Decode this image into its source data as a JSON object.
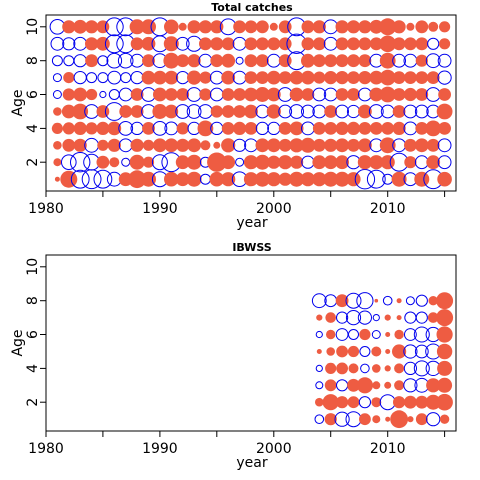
{
  "colors": {
    "positive": "#EE5C42",
    "negative": "#0000EE",
    "axis": "#000000"
  },
  "chart_data": [
    {
      "type": "scatter",
      "chart_kind": "bubble-residuals",
      "title": "Total catches",
      "xlabel": "year",
      "ylabel": "Age",
      "xlim": [
        1980,
        2016
      ],
      "ylim": [
        0.3,
        10.7
      ],
      "x_ticks": [
        1980,
        1990,
        2000,
        2010
      ],
      "x_tick_labels": [
        "1980",
        "1990",
        "2000",
        "2010"
      ],
      "x_minor_ticks": [
        1985,
        1995,
        2005,
        2015
      ],
      "y_ticks": [
        2,
        4,
        6,
        8,
        10
      ],
      "y_tick_labels": [
        "2",
        "4",
        "6",
        "8",
        "10"
      ],
      "grid": false,
      "legend": "none",
      "years": [
        1981,
        1982,
        1983,
        1984,
        1985,
        1986,
        1987,
        1988,
        1989,
        1990,
        1991,
        1992,
        1993,
        1994,
        1995,
        1996,
        1997,
        1998,
        1999,
        2000,
        2001,
        2002,
        2003,
        2004,
        2005,
        2006,
        2007,
        2008,
        2009,
        2010,
        2011,
        2012,
        2013,
        2014,
        2015
      ],
      "ages": [
        1,
        2,
        3,
        4,
        5,
        6,
        7,
        8,
        9,
        10
      ],
      "residuals": [
        [
          0.2,
          2.3,
          -2.5,
          -2.8,
          -2.5,
          -1.5,
          1.5,
          2.5,
          1.8,
          -1.8,
          1.7,
          1.5,
          1.8,
          -0.8,
          1.7,
          1.6,
          -1.7,
          1.6,
          1.8,
          1.6,
          1.4,
          1.8,
          1.6,
          1.6,
          1.8,
          1.8,
          1.6,
          -3.0,
          -2.5,
          -0.8,
          1.8,
          -1.3,
          1.8,
          -2.8,
          1.7
        ],
        [
          0.5,
          -1.7,
          -3.0,
          -2.0,
          1.3,
          0.8,
          -0.5,
          1.8,
          1.0,
          -1.8,
          -2.8,
          1.5,
          1.8,
          -0.8,
          3.0,
          1.5,
          -0.5,
          1.6,
          1.8,
          1.4,
          1.6,
          1.4,
          -1.2,
          1.5,
          1.5,
          1.5,
          -1.4,
          1.6,
          1.6,
          1.6,
          -2.5,
          1.2,
          -1.3,
          1.5,
          -1.3
        ],
        [
          0.6,
          1.3,
          1.4,
          -1.5,
          1.0,
          1.4,
          -1.3,
          1.4,
          1.0,
          1.5,
          1.5,
          1.4,
          1.5,
          0.8,
          0.4,
          1.6,
          -1.2,
          -1.3,
          1.5,
          1.5,
          1.3,
          1.6,
          1.8,
          1.3,
          1.4,
          1.5,
          1.3,
          1.5,
          -1.3,
          2.0,
          -1.3,
          1.3,
          1.5,
          1.3,
          -1.3
        ],
        [
          1.0,
          1.2,
          1.4,
          1.2,
          1.4,
          1.5,
          -1.5,
          -1.2,
          1.3,
          -1.5,
          -1.3,
          1.2,
          -1.2,
          2.0,
          -1.2,
          1.3,
          1.4,
          1.3,
          -1.2,
          -1.2,
          1.3,
          1.5,
          -1.3,
          1.3,
          1.3,
          1.4,
          1.4,
          1.3,
          1.3,
          1.3,
          1.4,
          -1.3,
          1.3,
          2.0,
          1.3
        ],
        [
          0.6,
          1.5,
          2.0,
          -1.5,
          1.3,
          -2.5,
          1.3,
          1.3,
          -1.5,
          1.8,
          1.5,
          -1.5,
          -1.5,
          -1.5,
          1.2,
          1.3,
          1.3,
          1.5,
          -1.3,
          1.6,
          -1.3,
          -1.5,
          -1.3,
          -1.3,
          1.3,
          -1.3,
          -1.2,
          1.5,
          -1.5,
          -1.3,
          1.3,
          -1.3,
          -1.3,
          -1.3,
          2.0
        ],
        [
          -0.5,
          1.2,
          1.5,
          1.0,
          -0.3,
          -0.8,
          -1.3,
          1.3,
          -1.5,
          1.5,
          1.3,
          1.3,
          -1.5,
          1.2,
          -1.3,
          1.3,
          1.3,
          1.5,
          1.8,
          1.5,
          -1.5,
          1.5,
          1.3,
          -1.3,
          -1.3,
          1.3,
          1.3,
          -1.3,
          1.5,
          2.0,
          1.3,
          1.4,
          1.3,
          -1.5,
          1.3
        ],
        [
          -0.5,
          1.0,
          -1.2,
          -0.8,
          -0.8,
          -1.3,
          -0.8,
          -1.2,
          1.5,
          1.5,
          1.5,
          -1.2,
          1.6,
          1.2,
          -1.3,
          1.5,
          -1.3,
          1.3,
          1.3,
          1.5,
          1.3,
          1.5,
          1.5,
          1.2,
          1.4,
          1.4,
          1.3,
          1.4,
          1.5,
          2.0,
          1.3,
          1.3,
          1.3,
          1.3,
          -1.4
        ],
        [
          -0.8,
          -0.8,
          -1.2,
          1.3,
          -0.8,
          -1.7,
          -1.7,
          -1.3,
          1.3,
          -1.5,
          2.0,
          1.3,
          1.4,
          -1.3,
          1.3,
          1.5,
          -0.4,
          1.3,
          1.3,
          -1.3,
          1.3,
          -2.5,
          1.5,
          1.3,
          1.3,
          1.3,
          1.3,
          1.3,
          -1.3,
          2.0,
          -1.3,
          -1.3,
          1.2,
          -1.5,
          -1.3
        ],
        [
          -1.3,
          -1.2,
          -1.3,
          1.4,
          1.5,
          -2.5,
          -2.5,
          1.3,
          1.5,
          -2.0,
          1.8,
          -1.3,
          -1.8,
          1.3,
          1.4,
          1.3,
          -1.3,
          1.3,
          1.3,
          1.3,
          1.3,
          -3.0,
          1.3,
          1.3,
          -1.3,
          1.3,
          1.3,
          1.3,
          1.3,
          2.2,
          1.3,
          1.3,
          1.3,
          -1.0,
          1.0
        ],
        [
          -1.7,
          1.4,
          1.5,
          1.4,
          1.3,
          -2.5,
          -2.5,
          1.8,
          1.8,
          -2.5,
          1.7,
          0.5,
          1.4,
          1.4,
          1.4,
          -2.0,
          1.3,
          1.3,
          1.3,
          0.5,
          1.3,
          -2.5,
          1.3,
          1.4,
          -1.5,
          1.4,
          1.4,
          1.4,
          1.5,
          2.3,
          1.4,
          0.5,
          1.3,
          0.8,
          1.0
        ]
      ]
    },
    {
      "type": "scatter",
      "chart_kind": "bubble-residuals",
      "title": "IBWSS",
      "xlabel": "year",
      "ylabel": "Age",
      "xlim": [
        1980,
        2016
      ],
      "ylim": [
        0.3,
        10.7
      ],
      "x_ticks": [
        1980,
        1990,
        2000,
        2010
      ],
      "x_tick_labels": [
        "1980",
        "1990",
        "2000",
        "2010"
      ],
      "x_minor_ticks": [
        1985,
        1995,
        2005,
        2015
      ],
      "y_ticks": [
        2,
        4,
        6,
        8,
        10
      ],
      "y_tick_labels": [
        "2",
        "4",
        "6",
        "8",
        "10"
      ],
      "grid": false,
      "legend": "none",
      "years": [
        2004,
        2005,
        2006,
        2007,
        2008,
        2009,
        2010,
        2011,
        2012,
        2013,
        2014,
        2015
      ],
      "ages": [
        1,
        2,
        3,
        4,
        5,
        6,
        7,
        8
      ],
      "residuals": [
        [
          -0.6,
          1.2,
          -1.6,
          -1.8,
          1.1,
          0.5,
          0.2,
          2.5,
          0.3,
          1.1,
          -1.4,
          0.7
        ],
        [
          0.6,
          2.1,
          1.2,
          1.1,
          -1.0,
          0.8,
          -1.8,
          1.2,
          1.3,
          1.3,
          1.8,
          2.2
        ],
        [
          -0.4,
          1.1,
          -1.0,
          1.3,
          2.1,
          0.5,
          0.4,
          0.8,
          -1.4,
          -1.5,
          1.6,
          1.8
        ],
        [
          -0.3,
          1.0,
          1.1,
          0.8,
          -0.6,
          0.6,
          0.3,
          0.8,
          -1.2,
          -1.8,
          -1.6,
          1.8
        ],
        [
          0.2,
          0.6,
          1.1,
          1.0,
          -0.8,
          0.8,
          0.2,
          1.6,
          -1.4,
          -1.3,
          -1.8,
          1.9
        ],
        [
          -0.3,
          0.7,
          -1.1,
          -0.8,
          1.0,
          -0.5,
          0.2,
          0.7,
          -1.1,
          -1.8,
          -1.6,
          2.1
        ],
        [
          0.3,
          0.9,
          -1.0,
          -1.6,
          -1.4,
          -0.3,
          0.3,
          0.2,
          -1.0,
          -1.0,
          0.9,
          2.3
        ],
        [
          -1.5,
          -1.1,
          1.3,
          -1.8,
          -2.1,
          0.1,
          -0.6,
          0.2,
          -0.5,
          -1.0,
          0.7,
          2.3
        ]
      ]
    }
  ]
}
